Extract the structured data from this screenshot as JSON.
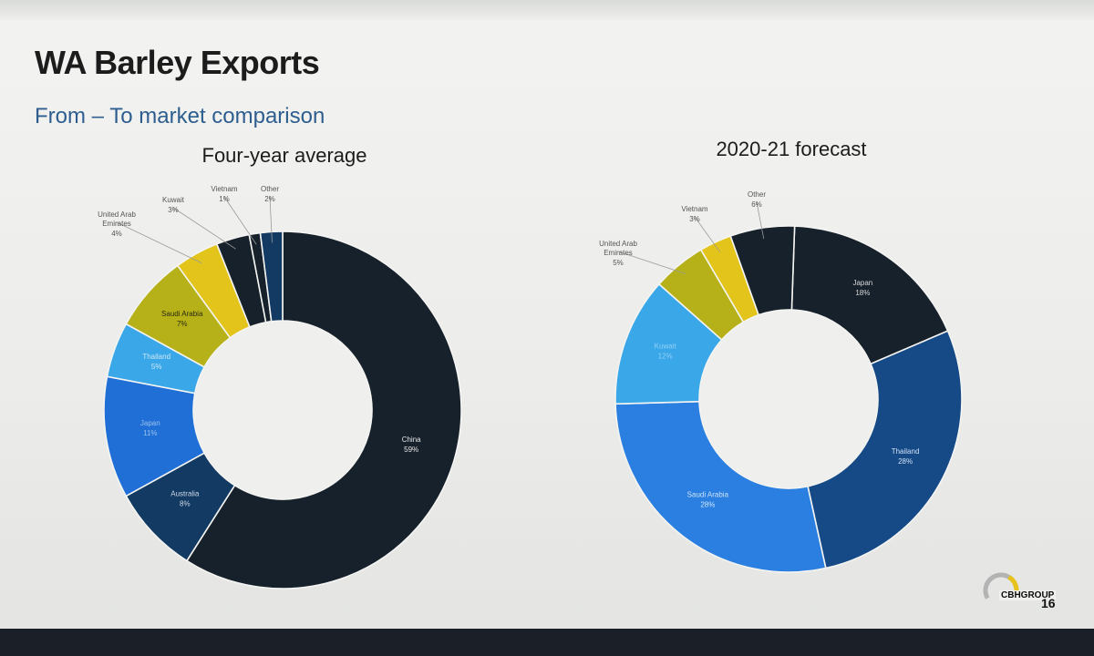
{
  "slide": {
    "title": "WA Barley Exports",
    "subtitle": "From – To market comparison",
    "page_number": "16",
    "brand": "CBHGROUP"
  },
  "chart_data": [
    {
      "type": "pie",
      "title": "Four-year average",
      "donut": true,
      "categories": [
        "China",
        "Australia",
        "Japan",
        "Thailand",
        "Saudi Arabia",
        "United Arab Emirates",
        "Kuwait",
        "Vietnam",
        "Other"
      ],
      "labels": [
        "China",
        "Australia",
        "Japan",
        "Thailand",
        "Saudi Arabia",
        "United Arab\nEmirates",
        "Kuwait",
        "Vietnam",
        "Other"
      ],
      "values": [
        59,
        8,
        11,
        5,
        7,
        4,
        3,
        1,
        2
      ],
      "value_labels": [
        "59%",
        "8%",
        "11%",
        "5%",
        "7%",
        "4%",
        "3%",
        "1%",
        "2%"
      ],
      "colors": [
        "#17212b",
        "#123a62",
        "#1f6fd6",
        "#3aa7e8",
        "#b6b118",
        "#e3c41b",
        "#17212b",
        "#17212b",
        "#123a62"
      ]
    },
    {
      "type": "pie",
      "title": "2020-21 forecast",
      "donut": true,
      "categories": [
        "Japan",
        "Thailand",
        "Saudi Arabia",
        "Kuwait",
        "United Arab Emirates",
        "Vietnam",
        "Other"
      ],
      "labels": [
        "Japan",
        "Thailand",
        "Saudi Arabia",
        "Kuwait",
        "United Arab\nEmirates",
        "Vietnam",
        "Other"
      ],
      "values": [
        18,
        28,
        28,
        12,
        5,
        3,
        6
      ],
      "value_labels": [
        "18%",
        "28%",
        "28%",
        "12%",
        "5%",
        "3%",
        "6%"
      ],
      "colors": [
        "#17212b",
        "#164a86",
        "#2a7fe0",
        "#3aa7e8",
        "#b6b118",
        "#e3c41b",
        "#17212b"
      ]
    }
  ]
}
